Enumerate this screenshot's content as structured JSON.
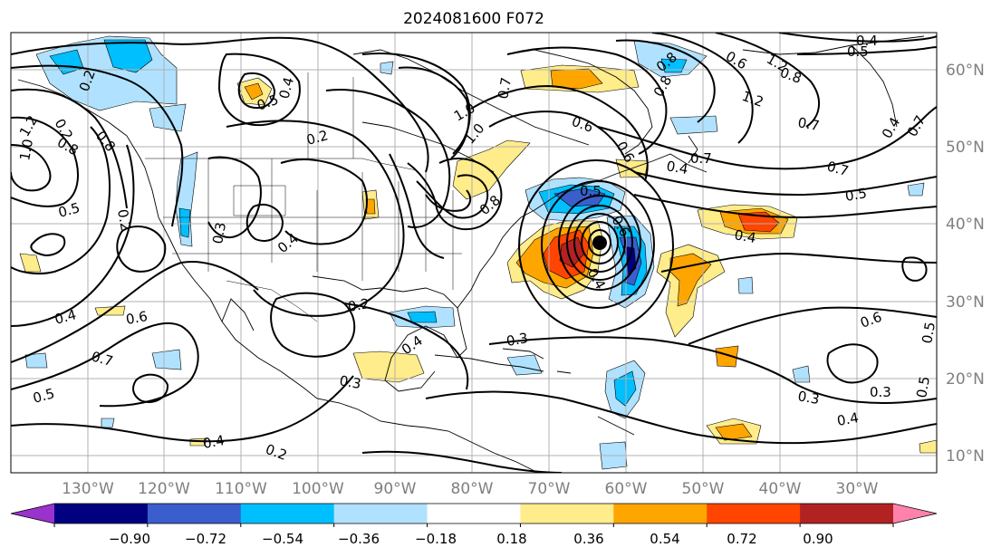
{
  "title": "2024081600 F072",
  "lon_labels": [
    "130°W",
    "120°W",
    "110°W",
    "100°W",
    "90°W",
    "80°W",
    "70°W",
    "60°W",
    "50°W",
    "40°W",
    "30°W"
  ],
  "lat_labels": [
    "60°N",
    "50°N",
    "40°N",
    "30°N",
    "20°N",
    "10°N"
  ],
  "colorbar": {
    "ticks": [
      "−0.90",
      "−0.72",
      "−0.54",
      "−0.36",
      "−0.18",
      "0.18",
      "0.36",
      "0.54",
      "0.72",
      "0.90"
    ],
    "colors": [
      "#9a32cd",
      "#000080",
      "#3a5fcd",
      "#00bfff",
      "#b0e2ff",
      "#ffffff",
      "#ffec8b",
      "#ffa500",
      "#ff4500",
      "#b22222",
      "#ff82ab"
    ]
  },
  "contour_labels": [
    "0.2",
    "0.5",
    "0.4",
    "0.2",
    "0.2",
    "1.0",
    "0.7",
    "1.0",
    "0.8",
    "1.2",
    "0.6",
    "0.5",
    "0.4",
    "0.8",
    "1.2",
    "0.7",
    "0.5",
    "0.5",
    "0.6",
    "0.6",
    "0.4",
    "0.3",
    "0.4",
    "0.8",
    "0.7",
    "1.0",
    "1.2",
    "0.8",
    "0.8",
    "0.7",
    "0.5",
    "0.4",
    "0.6",
    "0.5",
    "0.3",
    "0.3",
    "0.4",
    "0.3",
    "0.4",
    "0.4",
    "0.6",
    "0.7",
    "0.5",
    "0.4",
    "0.2",
    "0.2",
    "0.3",
    "0.2",
    "0.4",
    "0.4",
    "0.5",
    "0.6",
    "0.7",
    "0.8"
  ]
}
